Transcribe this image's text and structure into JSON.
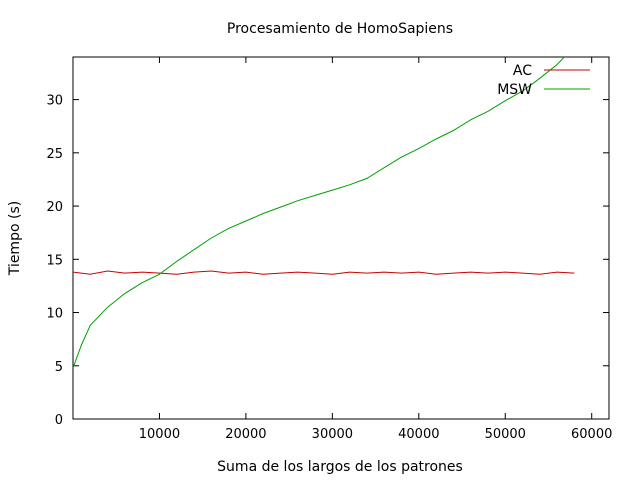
{
  "chart_data": {
    "type": "line",
    "title": "Procesamiento de HomoSapiens",
    "xlabel": "Suma de los largos de los patrones",
    "ylabel": "Tiempo (s)",
    "xlim": [
      0,
      62000
    ],
    "ylim": [
      0,
      34
    ],
    "x_ticks": [
      10000,
      20000,
      30000,
      40000,
      50000,
      60000
    ],
    "y_ticks": [
      0,
      5,
      10,
      15,
      20,
      25,
      30
    ],
    "grid": false,
    "legend_position": "top-right",
    "series": [
      {
        "name": "AC",
        "color": "#cc0000",
        "x": [
          0,
          2000,
          4000,
          6000,
          8000,
          10000,
          12000,
          14000,
          16000,
          18000,
          20000,
          22000,
          24000,
          26000,
          28000,
          30000,
          32000,
          34000,
          36000,
          38000,
          40000,
          42000,
          44000,
          46000,
          48000,
          50000,
          52000,
          54000,
          56000,
          58000
        ],
        "y": [
          13.8,
          13.6,
          13.9,
          13.7,
          13.8,
          13.7,
          13.6,
          13.8,
          13.9,
          13.7,
          13.8,
          13.6,
          13.7,
          13.8,
          13.7,
          13.6,
          13.8,
          13.7,
          13.8,
          13.7,
          13.8,
          13.6,
          13.7,
          13.8,
          13.7,
          13.8,
          13.7,
          13.6,
          13.8,
          13.7
        ]
      },
      {
        "name": "MSW",
        "color": "#00a000",
        "x": [
          0,
          1000,
          2000,
          4000,
          6000,
          8000,
          10000,
          12000,
          14000,
          16000,
          18000,
          20000,
          22000,
          24000,
          26000,
          28000,
          30000,
          32000,
          34000,
          36000,
          38000,
          40000,
          42000,
          44000,
          46000,
          48000,
          50000,
          52000,
          54000,
          56000,
          58000
        ],
        "y": [
          4.8,
          7.0,
          8.8,
          10.5,
          11.8,
          12.8,
          13.6,
          14.8,
          15.9,
          17.0,
          17.9,
          18.6,
          19.3,
          19.9,
          20.5,
          21.0,
          21.5,
          22.0,
          22.6,
          23.6,
          24.6,
          25.4,
          26.3,
          27.1,
          28.1,
          28.9,
          29.9,
          30.8,
          32.0,
          33.3,
          35.0
        ]
      }
    ]
  }
}
